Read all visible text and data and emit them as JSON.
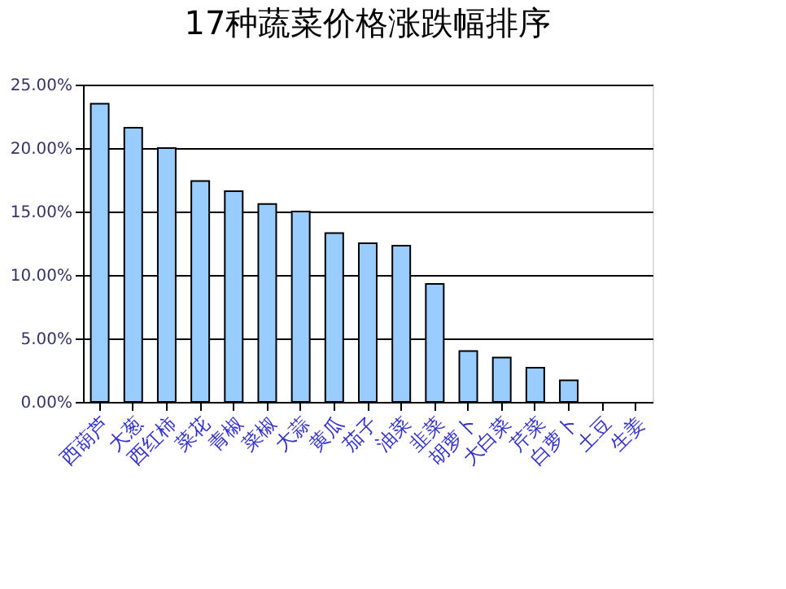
{
  "chart_data": {
    "type": "bar",
    "title": "17种蔬菜价格涨跌幅排序",
    "categories": [
      "西葫芦",
      "大葱",
      "西红柿",
      "菜花",
      "青椒",
      "菜椒",
      "大蒜",
      "黄瓜",
      "茄子",
      "油菜",
      "韭菜",
      "胡萝卜",
      "大白菜",
      "芹菜",
      "白萝卜",
      "土豆",
      "生姜"
    ],
    "values": [
      23.5,
      21.6,
      20.0,
      17.4,
      16.6,
      15.6,
      15.0,
      13.3,
      12.5,
      12.3,
      9.3,
      4.0,
      3.5,
      2.7,
      1.7,
      null,
      null
    ],
    "color": "#99ccff",
    "ylim": [
      0,
      25
    ],
    "yticks": [
      {
        "value": 0,
        "label": "0.00%"
      },
      {
        "value": 5,
        "label": "5.00%"
      },
      {
        "value": 10,
        "label": "10.00%"
      },
      {
        "value": 15,
        "label": "15.00%"
      },
      {
        "value": 20,
        "label": "20.00%"
      },
      {
        "value": 25,
        "label": "25.00%"
      }
    ],
    "grid": "y"
  }
}
